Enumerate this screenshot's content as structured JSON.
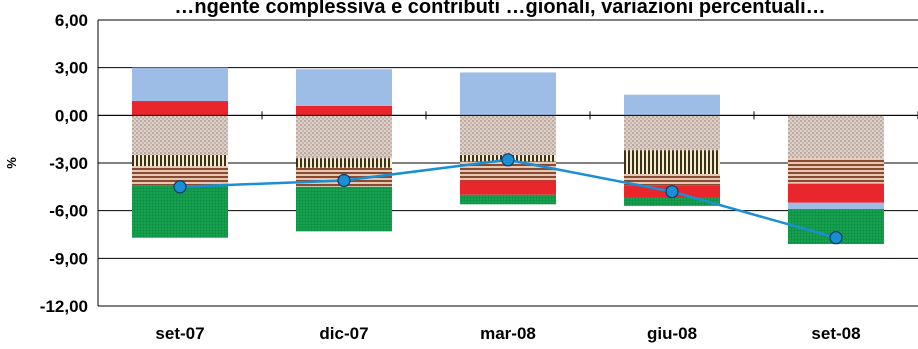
{
  "chart_data": {
    "type": "bar",
    "subtype": "stacked-bar-with-line",
    "title": "…ngente complessiva e contributi …gionali, variazioni percentuali…",
    "ylabel": "%",
    "xlabel": "",
    "categories": [
      "set-07",
      "dic-07",
      "mar-08",
      "giu-08",
      "set-08"
    ],
    "yticks": [
      "6,00",
      "3,00",
      "0,00",
      "-3,00",
      "-6,00",
      "-9,00",
      "-12,00"
    ],
    "ylim": [
      -12,
      6
    ],
    "grid": true,
    "series": [
      {
        "pattern": "dotted",
        "color": "#c8b6aa",
        "values": [
          -2.5,
          -2.7,
          -2.5,
          -2.2,
          -2.7
        ]
      },
      {
        "pattern": "vertical-stripes",
        "color": "#d9cfa6",
        "values": [
          -0.7,
          -0.6,
          -0.4,
          -1.5,
          0.0
        ]
      },
      {
        "pattern": "horizontal-stripes",
        "color": "#b8856a",
        "values": [
          -1.2,
          -1.2,
          -1.2,
          -0.7,
          -1.6
        ]
      },
      {
        "pattern": "solid",
        "color": "#e8262c",
        "values": [
          0.9,
          0.6,
          -0.9,
          -0.8,
          -1.2
        ]
      },
      {
        "pattern": "solid",
        "color": "#9dbde6",
        "values": [
          2.1,
          2.3,
          2.7,
          1.3,
          -0.4
        ]
      },
      {
        "pattern": "dotted",
        "color": "#109a48",
        "values": [
          -3.3,
          -2.8,
          -0.6,
          -0.5,
          -2.2
        ]
      }
    ],
    "line": {
      "color": "#1b8fd6",
      "values": [
        -4.5,
        -4.1,
        -2.8,
        -4.8,
        -7.7
      ]
    }
  }
}
